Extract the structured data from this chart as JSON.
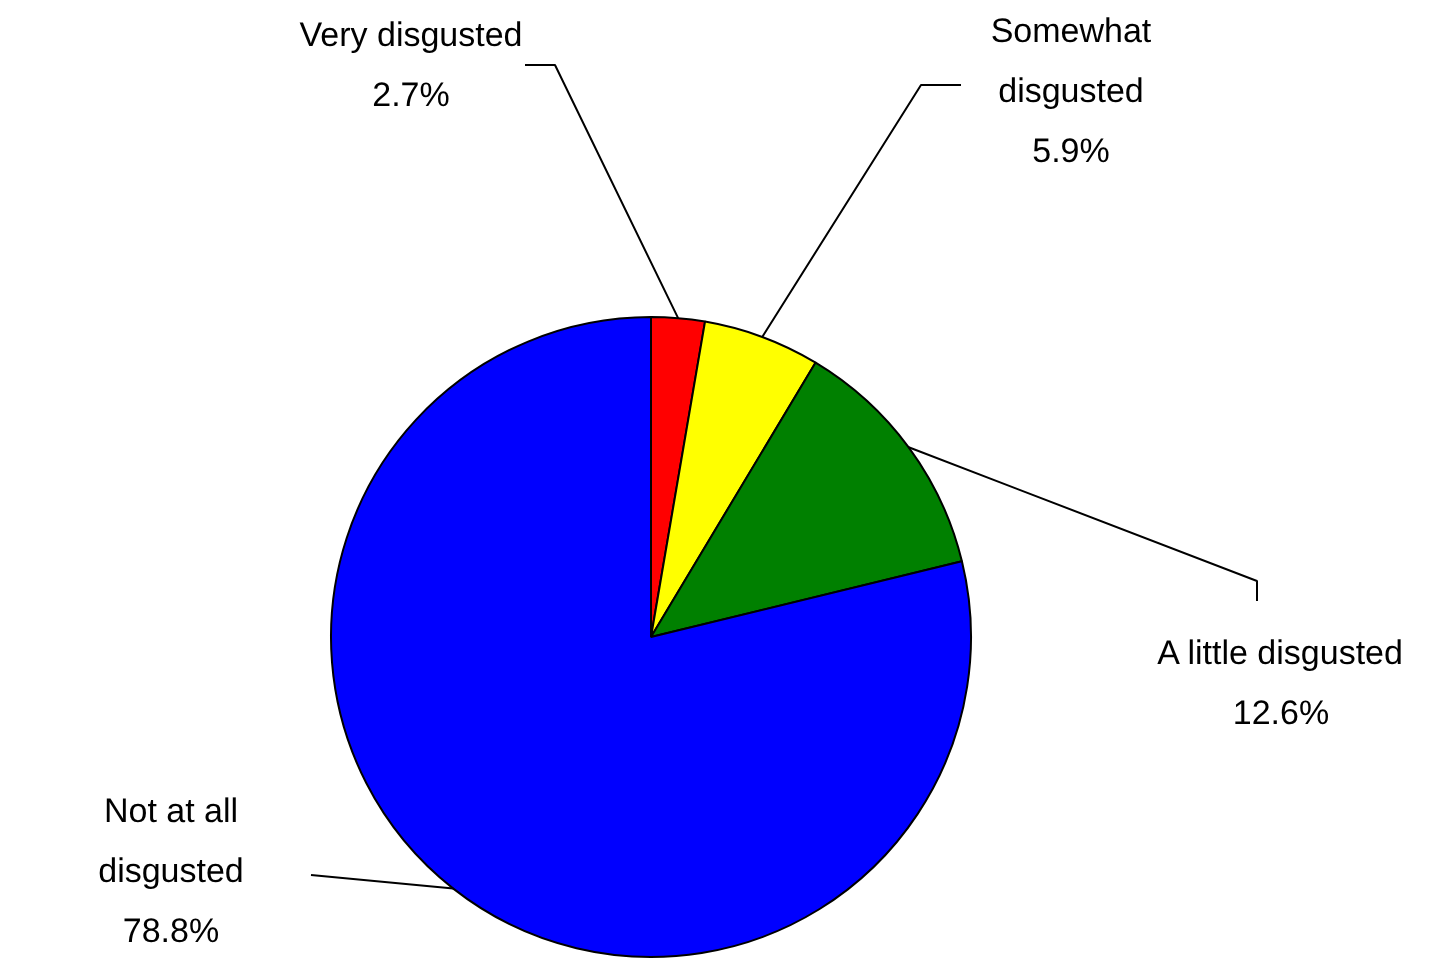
{
  "chart_data": {
    "type": "pie",
    "categories": [
      "Very disgusted",
      "Somewhat disgusted",
      "A little disgusted",
      "Not at all disgusted"
    ],
    "values": [
      2.7,
      5.9,
      12.6,
      78.8
    ],
    "colors": [
      "#ff0000",
      "#ffff00",
      "#008000",
      "#0000ff"
    ],
    "value_labels": [
      "2.7%",
      "5.9%",
      "12.6%",
      "78.8%"
    ]
  }
}
